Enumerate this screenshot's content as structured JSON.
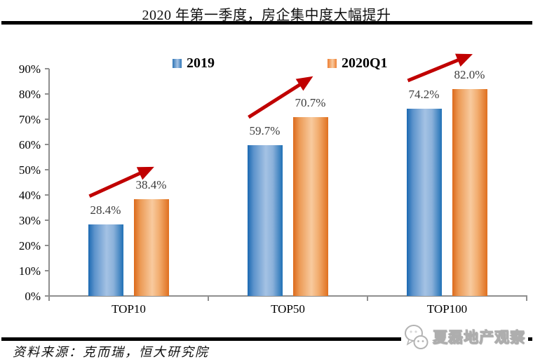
{
  "header": {
    "title": "2020 年第一季度，房企集中度大幅提升"
  },
  "footer": {
    "source_label": "资料来源：克而瑞，恒大研究院",
    "watermark_text": "夏磊地产观察"
  },
  "colors": {
    "series_2019": "#2E75B6",
    "series_2020q1": "#ED7D31",
    "arrow": "#C00000",
    "axis": "#8F8F8F",
    "value_label": "#3D3D3D"
  },
  "chart_data": {
    "type": "bar",
    "categories": [
      "TOP10",
      "TOP50",
      "TOP100"
    ],
    "series": [
      {
        "name": "2019",
        "color": "#2E75B6",
        "values": [
          28.4,
          59.7,
          74.2
        ]
      },
      {
        "name": "2020Q1",
        "color": "#ED7D31",
        "values": [
          38.4,
          70.7,
          82.0
        ]
      }
    ],
    "value_labels": [
      [
        "28.4%",
        "59.7%",
        "74.2%"
      ],
      [
        "38.4%",
        "70.7%",
        "82.0%"
      ]
    ],
    "ylabel": "",
    "xlabel": "",
    "ylim": [
      0,
      90
    ],
    "ytick_step": 10,
    "ytick_labels": [
      "0%",
      "10%",
      "20%",
      "30%",
      "40%",
      "50%",
      "60%",
      "70%",
      "80%",
      "90%"
    ],
    "legend_position": "top",
    "grid": false,
    "annotations": {
      "trend_arrows_per_category": true
    }
  }
}
